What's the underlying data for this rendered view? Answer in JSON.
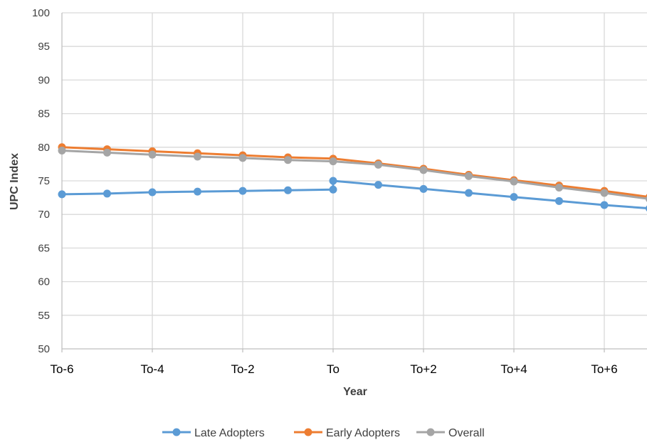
{
  "chart_data": {
    "type": "line",
    "xlabel": "Year",
    "ylabel": "UPC Index",
    "ylim": [
      50,
      100
    ],
    "y_ticks": [
      "50",
      "55",
      "60",
      "65",
      "70",
      "75",
      "80",
      "85",
      "90",
      "95",
      "100"
    ],
    "x_tick_labels": [
      "To-6",
      "To-4",
      "To-2",
      "To",
      "To+2",
      "To+4",
      "To+6"
    ],
    "x_tick_positions": [
      -6,
      -4,
      -2,
      0,
      2,
      4,
      6
    ],
    "xlim": [
      -6,
      7
    ],
    "grid": "vertical and horizontal",
    "legend_position": "bottom",
    "series": [
      {
        "name": "Late Adopters",
        "color": "#5B9BD5",
        "x": [
          -6,
          -5,
          -4,
          -3,
          -2,
          -1,
          0,
          0,
          1,
          2,
          3,
          4,
          5,
          6,
          7
        ],
        "values": [
          73.0,
          73.1,
          73.3,
          73.4,
          73.5,
          73.6,
          73.7,
          75.0,
          74.4,
          73.8,
          73.2,
          72.6,
          72.0,
          71.4,
          70.9
        ]
      },
      {
        "name": "Early Adopters",
        "color": "#ED7D31",
        "x": [
          -6,
          -5,
          -4,
          -3,
          -2,
          -1,
          0,
          1,
          2,
          3,
          4,
          5,
          6,
          7
        ],
        "values": [
          80.0,
          79.7,
          79.4,
          79.1,
          78.8,
          78.5,
          78.3,
          77.6,
          76.8,
          75.9,
          75.1,
          74.3,
          73.5,
          72.6
        ]
      },
      {
        "name": "Overall",
        "color": "#A5A5A5",
        "x": [
          -6,
          -5,
          -4,
          -3,
          -2,
          -1,
          0,
          1,
          2,
          3,
          4,
          5,
          6,
          7
        ],
        "values": [
          79.5,
          79.2,
          78.9,
          78.6,
          78.4,
          78.1,
          77.9,
          77.4,
          76.6,
          75.7,
          74.9,
          74.0,
          73.2,
          72.3
        ]
      }
    ]
  }
}
